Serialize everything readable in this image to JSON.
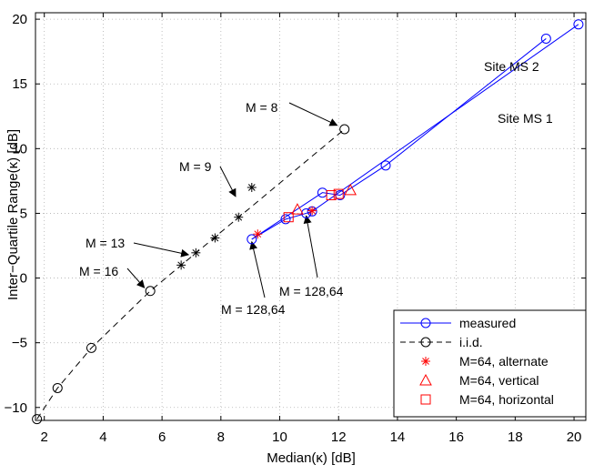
{
  "chart_data": {
    "type": "line",
    "xlabel": "Median(κ) [dB]",
    "ylabel": "Inter−Quartile Range(κ) [dB]",
    "xlim": [
      1.7,
      20.4
    ],
    "ylim": [
      -11,
      20.5
    ],
    "xticks": [
      2,
      4,
      6,
      8,
      10,
      12,
      14,
      16,
      18,
      20
    ],
    "xtick_labels": [
      "2",
      "4",
      "6",
      "8",
      "10",
      "12",
      "14",
      "16",
      "18",
      "20"
    ],
    "yticks": [
      -10,
      -5,
      0,
      5,
      10,
      15,
      20
    ],
    "ytick_labels": [
      "−10",
      "−5",
      "0",
      "5",
      "10",
      "15",
      "20"
    ],
    "grid": true,
    "legend_position": "bottom-right",
    "series": [
      {
        "name": "measured",
        "color": "#0000ff",
        "style": "solid",
        "marker": "circle",
        "lines": [
          {
            "x": [
              9.05,
              11.45,
              12.05,
              13.6,
              19.05
            ],
            "y": [
              3.0,
              6.6,
              6.4,
              8.7,
              18.5
            ]
          },
          {
            "x": [
              9.05,
              10.2,
              10.9,
              11.1,
              20.15
            ],
            "y": [
              3.0,
              4.55,
              5.0,
              5.15,
              19.6
            ]
          }
        ],
        "markers": {
          "x": [
            9.05,
            10.2,
            10.9,
            11.1,
            11.45,
            12.05,
            13.6,
            19.05,
            20.15
          ],
          "y": [
            3.0,
            4.55,
            5.0,
            5.15,
            6.6,
            6.4,
            8.7,
            18.5,
            19.6
          ]
        }
      },
      {
        "name": "i.i.d.",
        "color": "#000000",
        "style": "dashed",
        "marker": "circle",
        "x": [
          1.75,
          2.45,
          3.6,
          5.6,
          12.2
        ],
        "y": [
          -10.9,
          -8.5,
          -5.4,
          -1.0,
          11.5
        ]
      },
      {
        "name": "M=64, alternate",
        "color": "#ff0000",
        "style": "none",
        "marker": "asterisk",
        "x": [
          9.25,
          11.1
        ],
        "y": [
          3.4,
          5.2
        ]
      },
      {
        "name": "M=64, vertical",
        "color": "#ff0000",
        "style": "none",
        "marker": "triangle",
        "x": [
          10.6,
          12.4
        ],
        "y": [
          5.3,
          6.8
        ]
      },
      {
        "name": "M=64, horizontal",
        "color": "#ff0000",
        "style": "none",
        "marker": "square",
        "x": [
          10.3,
          11.75,
          12.0
        ],
        "y": [
          4.7,
          6.4,
          6.5
        ]
      },
      {
        "name": "",
        "color": "#000000",
        "style": "none",
        "marker": "asterisk",
        "x": [
          6.65,
          7.15,
          7.8,
          8.6,
          9.05
        ],
        "y": [
          1.0,
          1.95,
          3.1,
          4.7,
          7.0
        ]
      }
    ],
    "annotations": [
      {
        "text": "M = 8",
        "tip": [
          11.95,
          11.8
        ]
      },
      {
        "text": "M = 9",
        "tip": [
          8.5,
          6.3
        ]
      },
      {
        "text": "M = 13",
        "tip": [
          6.9,
          1.8
        ]
      },
      {
        "text": "M = 16",
        "tip": [
          5.4,
          -0.75
        ]
      },
      {
        "text": "M = 128,64",
        "tip": [
          10.9,
          4.8
        ]
      },
      {
        "text": "M = 128,64",
        "tip": [
          9.05,
          2.8
        ]
      },
      {
        "text": "Site MS 2"
      },
      {
        "text": "Site MS 1"
      }
    ]
  }
}
